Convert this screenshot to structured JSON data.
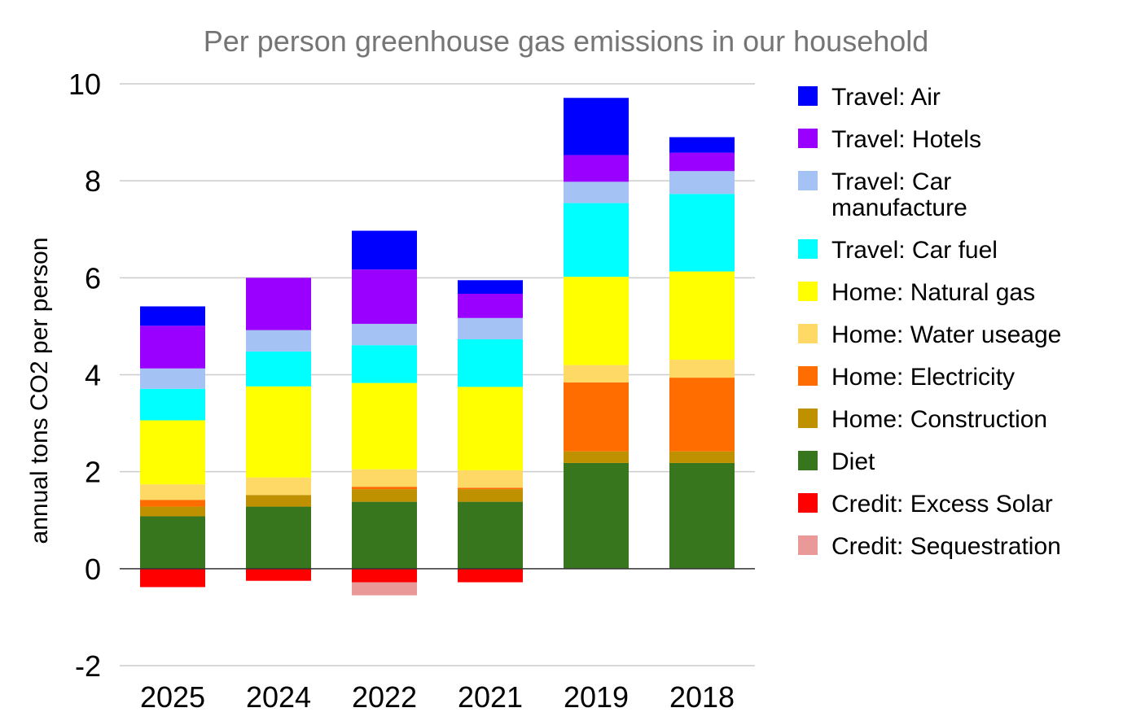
{
  "chart_data": {
    "type": "bar",
    "stacked": true,
    "title": "Per person greenhouse gas emissions in our household",
    "xlabel": "",
    "ylabel": "annual tons CO2 per person",
    "ylim": [
      -2,
      10
    ],
    "yticks": [
      10,
      8,
      6,
      4,
      2,
      0,
      -2
    ],
    "gridlines": true,
    "legend_position": "right",
    "categories": [
      "2025",
      "2024",
      "2022",
      "2021",
      "2019",
      "2018"
    ],
    "series": [
      {
        "name": "Diet",
        "color": "#38761d",
        "values": [
          1.08,
          1.28,
          1.38,
          1.38,
          2.18,
          2.18
        ]
      },
      {
        "name": "Home: Construction",
        "color": "#bf9000",
        "values": [
          0.2,
          0.24,
          0.26,
          0.26,
          0.24,
          0.24
        ]
      },
      {
        "name": "Home: Electricity",
        "color": "#ff6d01",
        "values": [
          0.14,
          0.0,
          0.05,
          0.03,
          1.42,
          1.52
        ]
      },
      {
        "name": "Home: Water useage",
        "color": "#ffd966",
        "values": [
          0.32,
          0.36,
          0.36,
          0.36,
          0.36,
          0.37
        ]
      },
      {
        "name": "Home: Natural gas",
        "color": "#ffff00",
        "values": [
          1.32,
          1.88,
          1.78,
          1.72,
          1.82,
          1.82
        ]
      },
      {
        "name": "Travel: Car fuel",
        "color": "#00ffff",
        "values": [
          0.65,
          0.72,
          0.78,
          0.98,
          1.52,
          1.6
        ]
      },
      {
        "name": "Travel: Car manufacture",
        "color": "#a4c2f4",
        "values": [
          0.42,
          0.44,
          0.44,
          0.44,
          0.44,
          0.47
        ]
      },
      {
        "name": "Travel: Hotels",
        "color": "#9900ff",
        "values": [
          0.88,
          1.08,
          1.12,
          0.5,
          0.55,
          0.38
        ]
      },
      {
        "name": "Travel: Air",
        "color": "#0000ff",
        "values": [
          0.4,
          0.0,
          0.8,
          0.28,
          1.18,
          0.32
        ]
      },
      {
        "name": "Credit: Excess Solar",
        "color": "#ff0000",
        "values": [
          -0.38,
          -0.25,
          -0.28,
          -0.28,
          0,
          0
        ]
      },
      {
        "name": "Credit: Sequestration",
        "color": "#ea9999",
        "values": [
          0,
          0,
          -0.27,
          0,
          0,
          0
        ]
      }
    ],
    "legend_order": [
      "Travel: Air",
      "Travel: Hotels",
      "Travel: Car manufacture",
      "Travel: Car fuel",
      "Home: Natural gas",
      "Home: Water useage",
      "Home: Electricity",
      "Home: Construction",
      "Diet",
      "Credit: Excess Solar",
      "Credit: Sequestration"
    ]
  }
}
